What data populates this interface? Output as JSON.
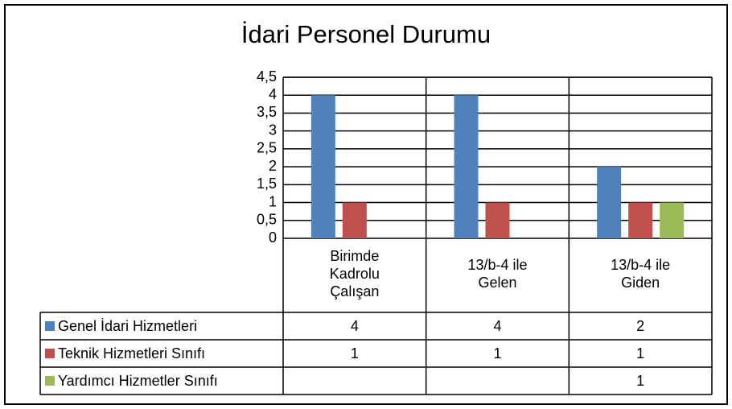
{
  "chart_data": {
    "type": "bar",
    "title": "İdari Personel Durumu",
    "categories": [
      "Birimde Kadrolu Çalışan",
      "13/b-4 ile Gelen",
      "13/b-4 ile Giden"
    ],
    "series": [
      {
        "name": "Genel İdari Hizmetleri",
        "color": "#4f81bd",
        "values": [
          4,
          4,
          2
        ]
      },
      {
        "name": "Teknik Hizmetleri Sınıfı",
        "color": "#c0504d",
        "values": [
          1,
          1,
          1
        ]
      },
      {
        "name": "Yardımcı Hizmetler Sınıfı",
        "color": "#9bbb59",
        "values": [
          null,
          null,
          1
        ]
      }
    ],
    "ylim": [
      0,
      4.5
    ],
    "yticks": [
      0,
      {
        "value": 0.5,
        "label": "0,5"
      },
      1,
      {
        "value": 1.5,
        "label": "1,5"
      },
      2,
      {
        "value": 2.5,
        "label": "2,5"
      },
      3,
      {
        "value": 3.5,
        "label": "3,5"
      },
      4,
      {
        "value": 4.5,
        "label": "4,5"
      }
    ],
    "grid": true,
    "data_table": true
  }
}
